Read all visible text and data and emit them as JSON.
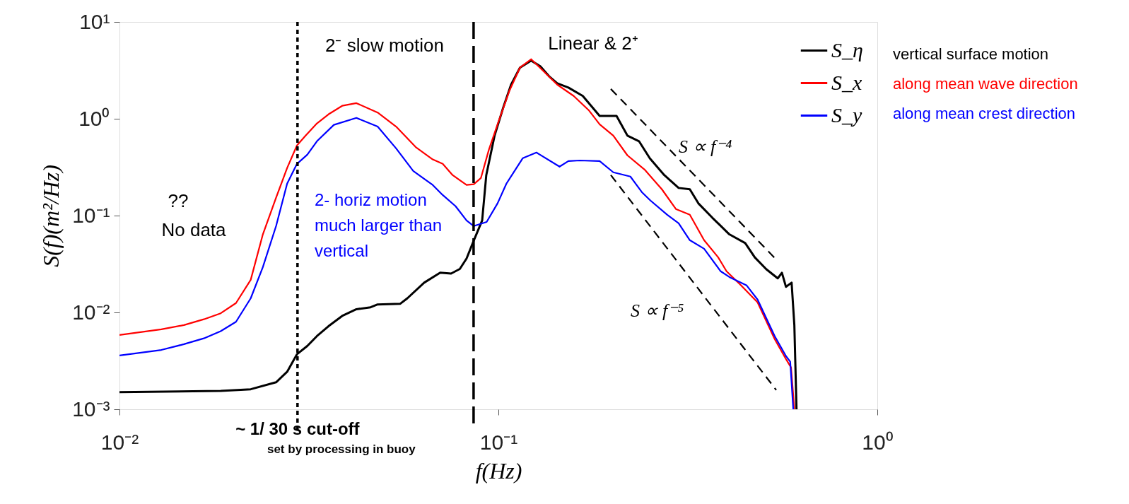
{
  "chart_data": {
    "type": "line",
    "xlabel": "f(Hz)",
    "ylabel": "S(f)(m²/Hz)",
    "log": "xy",
    "xlim": [
      0.01,
      1
    ],
    "ylim": [
      0.001,
      10
    ],
    "xticks": [
      {
        "value": 0.01,
        "label": "10⁻²"
      },
      {
        "value": 0.1,
        "label": "10⁻¹"
      },
      {
        "value": 1,
        "label": "10⁰"
      }
    ],
    "yticks": [
      {
        "value": 0.001,
        "label": "10⁻³"
      },
      {
        "value": 0.01,
        "label": "10⁻²"
      },
      {
        "value": 0.1,
        "label": "10⁻¹"
      },
      {
        "value": 1,
        "label": "10⁰"
      },
      {
        "value": 10,
        "label": "10¹"
      }
    ],
    "grid": false,
    "legend": "top right",
    "line_style": "solid",
    "series": [
      {
        "name": "S_η",
        "color": "#000000",
        "x": [
          0.01,
          0.0185,
          0.0222,
          0.0259,
          0.0277,
          0.0294,
          0.0313,
          0.0332,
          0.0356,
          0.0387,
          0.0422,
          0.046,
          0.048,
          0.0551,
          0.0575,
          0.0637,
          0.0702,
          0.075,
          0.0791,
          0.0824,
          0.0859,
          0.0906,
          0.0929,
          0.0977,
          0.103,
          0.108,
          0.114,
          0.122,
          0.129,
          0.136,
          0.143,
          0.153,
          0.167,
          0.185,
          0.205,
          0.219,
          0.235,
          0.251,
          0.274,
          0.299,
          0.32,
          0.337,
          0.367,
          0.407,
          0.448,
          0.475,
          0.509,
          0.546,
          0.56,
          0.574,
          0.594,
          0.604,
          0.612
        ],
        "values": [
          0.0015,
          0.00155,
          0.00161,
          0.0019,
          0.00244,
          0.0037,
          0.0045,
          0.0057,
          0.0072,
          0.0092,
          0.0108,
          0.0113,
          0.0121,
          0.0123,
          0.014,
          0.0203,
          0.0257,
          0.0252,
          0.0281,
          0.036,
          0.054,
          0.089,
          0.262,
          0.67,
          1.31,
          2.25,
          3.37,
          3.98,
          3.48,
          2.75,
          2.32,
          2.1,
          1.72,
          1.07,
          1.07,
          0.67,
          0.586,
          0.39,
          0.262,
          0.193,
          0.187,
          0.134,
          0.095,
          0.064,
          0.052,
          0.037,
          0.028,
          0.0225,
          0.0257,
          0.0184,
          0.0203,
          0.0074,
          0.001
        ]
      },
      {
        "name": "S_x",
        "color": "#ff0000",
        "x": [
          0.01,
          0.0129,
          0.0148,
          0.0167,
          0.0185,
          0.0203,
          0.0222,
          0.0239,
          0.0259,
          0.0277,
          0.0294,
          0.031,
          0.0332,
          0.0356,
          0.0387,
          0.0422,
          0.048,
          0.0537,
          0.0605,
          0.0671,
          0.0713,
          0.0757,
          0.0824,
          0.0861,
          0.0899,
          0.0944,
          0.0995,
          0.107,
          0.114,
          0.122,
          0.131,
          0.143,
          0.158,
          0.173,
          0.185,
          0.201,
          0.219,
          0.243,
          0.27,
          0.294,
          0.32,
          0.349,
          0.38,
          0.4,
          0.437,
          0.483,
          0.536,
          0.574,
          0.592,
          0.604
        ],
        "values": [
          0.00586,
          0.0067,
          0.0074,
          0.0085,
          0.0098,
          0.0125,
          0.0217,
          0.064,
          0.153,
          0.31,
          0.53,
          0.67,
          0.895,
          1.11,
          1.36,
          1.45,
          1.16,
          0.83,
          0.51,
          0.38,
          0.342,
          0.262,
          0.207,
          0.211,
          0.244,
          0.48,
          0.877,
          1.96,
          3.37,
          4.12,
          3.15,
          2.25,
          1.72,
          1.23,
          0.877,
          0.67,
          0.419,
          0.299,
          0.187,
          0.117,
          0.102,
          0.0557,
          0.0372,
          0.0266,
          0.019,
          0.0127,
          0.0053,
          0.0033,
          0.0027,
          0.001
        ]
      },
      {
        "name": "S_y",
        "color": "#0000ff",
        "x": [
          0.01,
          0.0129,
          0.0148,
          0.0167,
          0.0185,
          0.0203,
          0.0222,
          0.0239,
          0.0259,
          0.0277,
          0.0294,
          0.0313,
          0.0332,
          0.0368,
          0.0422,
          0.048,
          0.0537,
          0.0596,
          0.0671,
          0.0713,
          0.0771,
          0.0824,
          0.0861,
          0.0931,
          0.0995,
          0.105,
          0.116,
          0.126,
          0.145,
          0.153,
          0.164,
          0.185,
          0.201,
          0.223,
          0.239,
          0.252,
          0.279,
          0.299,
          0.32,
          0.349,
          0.386,
          0.407,
          0.452,
          0.483,
          0.536,
          0.574,
          0.589,
          0.6
        ],
        "values": [
          0.00359,
          0.0041,
          0.0047,
          0.0054,
          0.0064,
          0.008,
          0.014,
          0.0294,
          0.078,
          0.214,
          0.342,
          0.425,
          0.586,
          0.865,
          1.02,
          0.83,
          0.495,
          0.289,
          0.207,
          0.163,
          0.125,
          0.089,
          0.078,
          0.086,
          0.134,
          0.214,
          0.392,
          0.448,
          0.32,
          0.366,
          0.371,
          0.366,
          0.28,
          0.253,
          0.175,
          0.143,
          0.102,
          0.0834,
          0.0557,
          0.0455,
          0.0266,
          0.0232,
          0.019,
          0.0136,
          0.0057,
          0.00354,
          0.0031,
          0.001
        ]
      },
      {
        "type": "line",
        "color": "#000000",
        "line_style": "dashed",
        "x": [
          0.198,
          0.541
        ],
        "values": [
          2.03,
          0.0352
        ]
      },
      {
        "type": "line",
        "color": "#000000",
        "line_style": "dashed",
        "x": [
          0.198,
          0.541
        ],
        "values": [
          0.262,
          0.00158
        ]
      }
    ],
    "ref_lines": [
      {
        "axis": "x",
        "value": 0.0295,
        "label": "~ 1/ 30 s cut-off",
        "line_style": "dotted",
        "color": "#000000"
      },
      {
        "axis": "x",
        "value": 0.086,
        "line_style": "dashed",
        "color": "#000000"
      }
    ],
    "annotations": [
      "vertical surface motion",
      "along mean wave direction",
      "along mean crest direction",
      "set by processing in buoy",
      "2⁻ slow motion",
      "Linear & 2⁺",
      "??",
      "No data",
      "2- horiz motion\nmuch larger than\nvertical",
      "S ∝ f⁻⁴",
      "S ∝ f⁻⁵"
    ]
  }
}
